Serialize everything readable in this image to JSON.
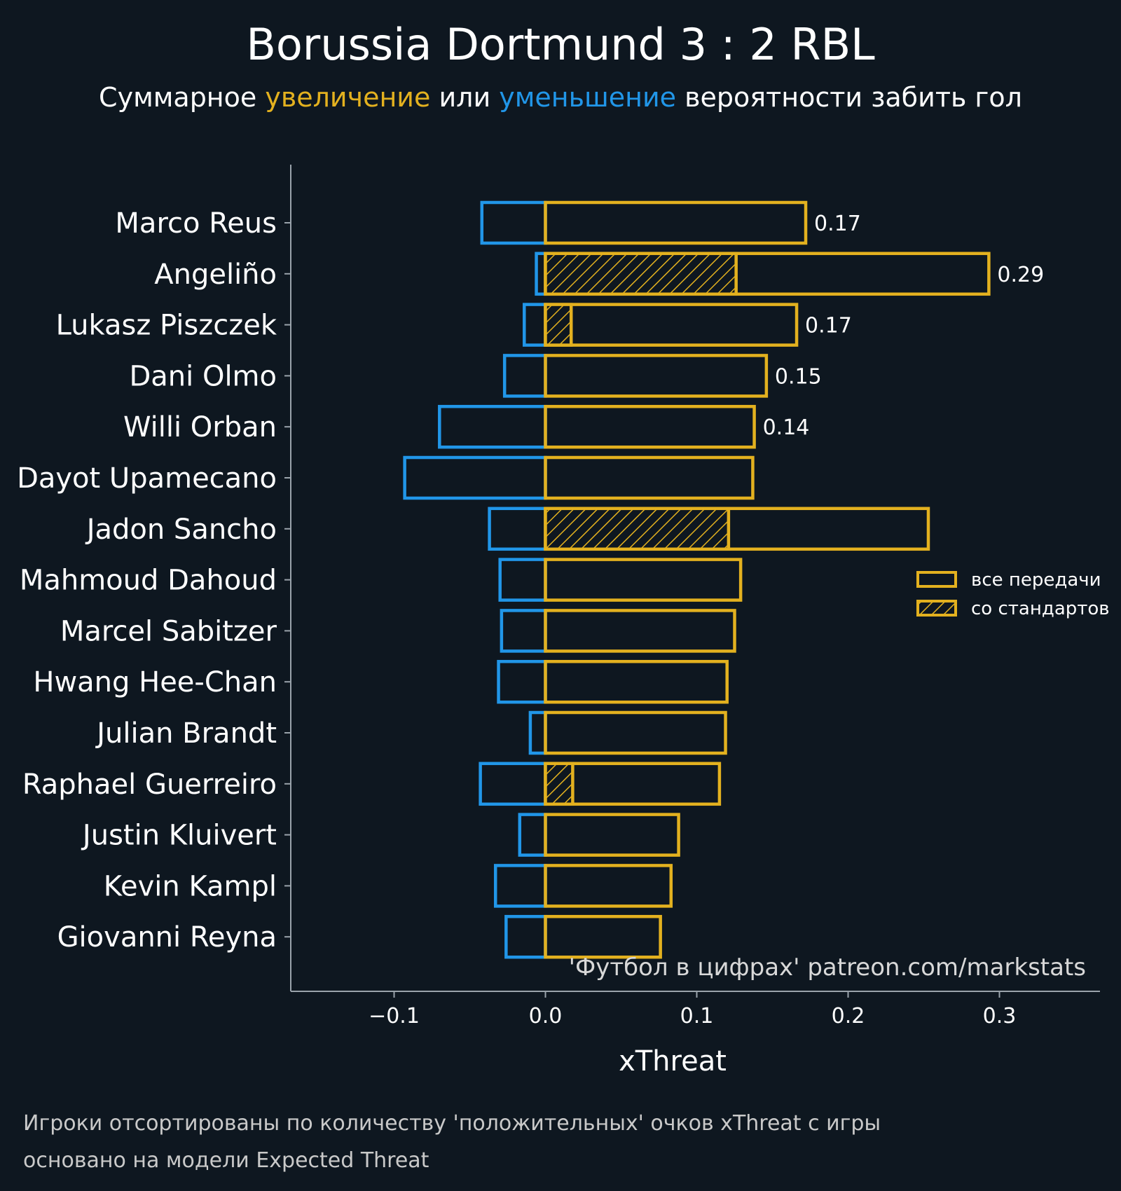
{
  "title": "Borussia Dortmund 3 : 2 RBL",
  "subtitle": {
    "prefix": "Суммарное ",
    "increase": "увеличение",
    "middle": " или ",
    "decrease": "уменьшение",
    "suffix": " вероятности забить гол"
  },
  "colors": {
    "background": "#0e1720",
    "positive": "#e3b11f",
    "negative": "#2196e8",
    "axis": "#9aa3ab",
    "text": "#ffffff"
  },
  "chart_data": {
    "type": "bar",
    "orientation": "horizontal",
    "xlabel": "xThreat",
    "xlim": [
      -0.17,
      0.37
    ],
    "xticks": [
      -0.1,
      0.0,
      0.1,
      0.2,
      0.3
    ],
    "xtick_labels": [
      "−0.1",
      "0.0",
      "0.1",
      "0.2",
      "0.3"
    ],
    "categories": [
      "Marco Reus",
      "Angeliño",
      "Lukasz Piszczek",
      "Dani Olmo",
      "Willi Orban",
      "Dayot Upamecano",
      "Jadon Sancho",
      "Mahmoud Dahoud",
      "Marcel Sabitzer",
      "Hwang Hee-Chan",
      "Julian Brandt",
      "Raphael Guerreiro",
      "Justin Kluivert",
      "Kevin Kampl",
      "Giovanni Reyna"
    ],
    "series": [
      {
        "name": "все передачи (положительные)",
        "values": [
          0.172,
          0.293,
          0.166,
          0.146,
          0.138,
          0.137,
          0.253,
          0.129,
          0.125,
          0.12,
          0.119,
          0.115,
          0.088,
          0.083,
          0.076
        ]
      },
      {
        "name": "все передачи (отрицательные)",
        "values": [
          -0.042,
          -0.006,
          -0.014,
          -0.027,
          -0.07,
          -0.093,
          -0.037,
          -0.03,
          -0.029,
          -0.031,
          -0.01,
          -0.043,
          -0.017,
          -0.033,
          -0.026
        ]
      },
      {
        "name": "со стандартов",
        "values": [
          0,
          0.126,
          0.017,
          0,
          0,
          0,
          0.121,
          0,
          0,
          0,
          0,
          0.018,
          0,
          0,
          0
        ]
      }
    ],
    "value_labels": [
      "0.17",
      "0.29",
      "0.17",
      "0.15",
      "0.14",
      "",
      "",
      "",
      "",
      "",
      "",
      "",
      "",
      "",
      ""
    ],
    "legend": {
      "position": "center-right",
      "entries": [
        "все передачи",
        "со стандартов"
      ]
    }
  },
  "watermark": "'Футбол в цифрах' patreon.com/markstats",
  "footnotes": [
    "Игроки отсортированы по количеству 'положительных' очков xThreat с игры",
    "основано на модели Expected Threat"
  ]
}
